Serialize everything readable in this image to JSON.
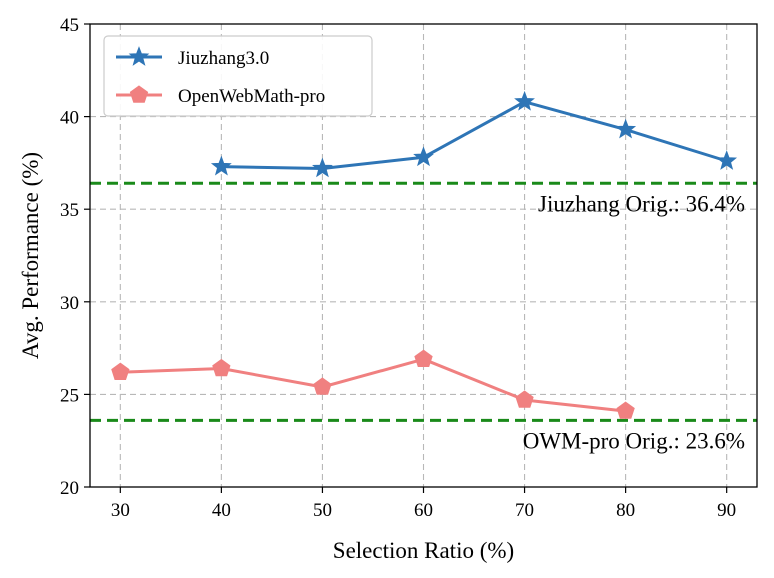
{
  "chart_data": {
    "type": "line",
    "x": [
      30,
      40,
      50,
      60,
      70,
      80,
      90
    ],
    "xlabel": "Selection Ratio (%)",
    "ylabel": "Avg. Performance (%)",
    "xlim": [
      27,
      93
    ],
    "ylim": [
      20,
      45
    ],
    "xticks": [
      30,
      40,
      50,
      60,
      70,
      80,
      90
    ],
    "yticks": [
      20,
      25,
      30,
      35,
      40,
      45
    ],
    "grid": true,
    "legend_position": "top-left",
    "series": [
      {
        "name": "Jiuzhang3.0",
        "x": [
          40,
          50,
          60,
          70,
          80,
          90
        ],
        "values": [
          37.3,
          37.2,
          37.8,
          40.8,
          39.3,
          37.6
        ],
        "color": "#2e75b6",
        "marker": "star"
      },
      {
        "name": "OpenWebMath-pro",
        "x": [
          30,
          40,
          50,
          60,
          70,
          80
        ],
        "values": [
          26.2,
          26.4,
          25.4,
          26.9,
          24.7,
          24.1
        ],
        "color": "#f08080",
        "marker": "pentagon"
      }
    ],
    "reference_lines": [
      {
        "value": 36.4,
        "label": "Jiuzhang Orig.: 36.4%",
        "color": "#1a8a1a"
      },
      {
        "value": 23.6,
        "label": "OWM-pro Orig.: 23.6%",
        "color": "#1a8a1a"
      }
    ]
  }
}
